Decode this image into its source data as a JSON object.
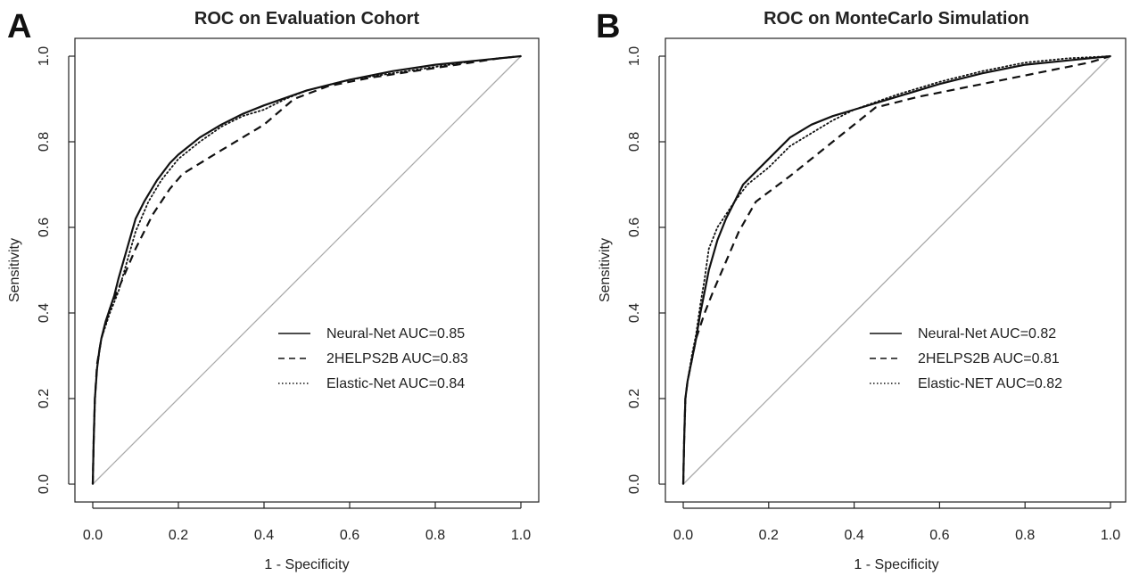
{
  "chart_data": [
    {
      "panel": "A",
      "type": "line",
      "title": "ROC on Evaluation Cohort",
      "xlabel": "1 - Specificity",
      "ylabel": "Sensitivity",
      "xlim": [
        0,
        1
      ],
      "ylim": [
        0,
        1
      ],
      "xticks": [
        "0.0",
        "0.2",
        "0.4",
        "0.6",
        "0.8",
        "1.0"
      ],
      "yticks": [
        "0.0",
        "0.2",
        "0.4",
        "0.6",
        "0.8",
        "1.0"
      ],
      "grid": false,
      "legend_position": "bottom-right",
      "reference_line": {
        "x": [
          0,
          1
        ],
        "y": [
          0,
          1
        ],
        "color": "#aaaaaa"
      },
      "series": [
        {
          "name": "Neural-Net AUC=0.85",
          "style": "solid",
          "x": [
            0,
            0.002,
            0.005,
            0.01,
            0.015,
            0.02,
            0.03,
            0.04,
            0.05,
            0.06,
            0.08,
            0.1,
            0.12,
            0.15,
            0.18,
            0.2,
            0.25,
            0.3,
            0.35,
            0.4,
            0.5,
            0.6,
            0.7,
            0.8,
            0.9,
            1.0
          ],
          "y": [
            0,
            0.1,
            0.2,
            0.27,
            0.31,
            0.34,
            0.38,
            0.41,
            0.44,
            0.48,
            0.55,
            0.62,
            0.66,
            0.71,
            0.75,
            0.77,
            0.81,
            0.84,
            0.865,
            0.885,
            0.92,
            0.945,
            0.965,
            0.98,
            0.99,
            1.0
          ]
        },
        {
          "name": "2HELPS2B AUC=0.83",
          "style": "dashed",
          "x": [
            0,
            0.002,
            0.005,
            0.01,
            0.02,
            0.04,
            0.07,
            0.1,
            0.14,
            0.18,
            0.21,
            0.3,
            0.4,
            0.47,
            0.55,
            0.65,
            0.75,
            0.85,
            0.95,
            1.0
          ],
          "y": [
            0,
            0.1,
            0.2,
            0.28,
            0.34,
            0.41,
            0.48,
            0.55,
            0.63,
            0.69,
            0.725,
            0.78,
            0.84,
            0.9,
            0.93,
            0.95,
            0.965,
            0.98,
            0.995,
            1.0
          ]
        },
        {
          "name": "Elastic-Net AUC=0.84",
          "style": "dotted",
          "x": [
            0,
            0.002,
            0.005,
            0.01,
            0.02,
            0.04,
            0.06,
            0.08,
            0.1,
            0.13,
            0.16,
            0.2,
            0.25,
            0.3,
            0.35,
            0.4,
            0.45,
            0.5,
            0.6,
            0.7,
            0.8,
            0.9,
            1.0
          ],
          "y": [
            0,
            0.1,
            0.2,
            0.27,
            0.34,
            0.4,
            0.45,
            0.52,
            0.59,
            0.66,
            0.71,
            0.76,
            0.8,
            0.835,
            0.86,
            0.875,
            0.9,
            0.92,
            0.945,
            0.96,
            0.975,
            0.99,
            1.0
          ]
        }
      ]
    },
    {
      "panel": "B",
      "type": "line",
      "title": "ROC on MonteCarlo Simulation",
      "xlabel": "1 - Specificity",
      "ylabel": "Sensitivity",
      "xlim": [
        0,
        1
      ],
      "ylim": [
        0,
        1
      ],
      "xticks": [
        "0.0",
        "0.2",
        "0.4",
        "0.6",
        "0.8",
        "1.0"
      ],
      "yticks": [
        "0.0",
        "0.2",
        "0.4",
        "0.6",
        "0.8",
        "1.0"
      ],
      "grid": false,
      "legend_position": "bottom-right",
      "reference_line": {
        "x": [
          0,
          1
        ],
        "y": [
          0,
          1
        ],
        "color": "#aaaaaa"
      },
      "series": [
        {
          "name": "Neural-Net AUC=0.82",
          "style": "solid",
          "x": [
            0,
            0.002,
            0.005,
            0.01,
            0.02,
            0.03,
            0.04,
            0.05,
            0.06,
            0.08,
            0.1,
            0.12,
            0.14,
            0.16,
            0.2,
            0.25,
            0.3,
            0.35,
            0.4,
            0.5,
            0.6,
            0.7,
            0.8,
            0.9,
            1.0
          ],
          "y": [
            0,
            0.1,
            0.2,
            0.24,
            0.29,
            0.34,
            0.4,
            0.45,
            0.5,
            0.57,
            0.62,
            0.66,
            0.7,
            0.72,
            0.76,
            0.81,
            0.84,
            0.86,
            0.875,
            0.905,
            0.935,
            0.96,
            0.98,
            0.99,
            1.0
          ]
        },
        {
          "name": "2HELPS2B AUC=0.81",
          "style": "dashed",
          "x": [
            0,
            0.002,
            0.005,
            0.01,
            0.02,
            0.03,
            0.05,
            0.07,
            0.1,
            0.13,
            0.17,
            0.25,
            0.35,
            0.45,
            0.55,
            0.65,
            0.75,
            0.85,
            0.95,
            1.0
          ],
          "y": [
            0,
            0.1,
            0.2,
            0.24,
            0.29,
            0.34,
            0.4,
            0.45,
            0.52,
            0.59,
            0.66,
            0.72,
            0.8,
            0.88,
            0.905,
            0.925,
            0.945,
            0.965,
            0.985,
            1.0
          ]
        },
        {
          "name": "Elastic-NET AUC=0.82",
          "style": "dotted",
          "x": [
            0,
            0.002,
            0.005,
            0.01,
            0.02,
            0.03,
            0.04,
            0.05,
            0.06,
            0.08,
            0.1,
            0.12,
            0.15,
            0.2,
            0.25,
            0.3,
            0.35,
            0.4,
            0.5,
            0.6,
            0.7,
            0.8,
            0.9,
            1.0
          ],
          "y": [
            0,
            0.1,
            0.2,
            0.24,
            0.3,
            0.35,
            0.42,
            0.48,
            0.55,
            0.6,
            0.63,
            0.66,
            0.7,
            0.74,
            0.79,
            0.82,
            0.85,
            0.875,
            0.91,
            0.94,
            0.965,
            0.985,
            0.995,
            1.0
          ]
        }
      ]
    }
  ]
}
